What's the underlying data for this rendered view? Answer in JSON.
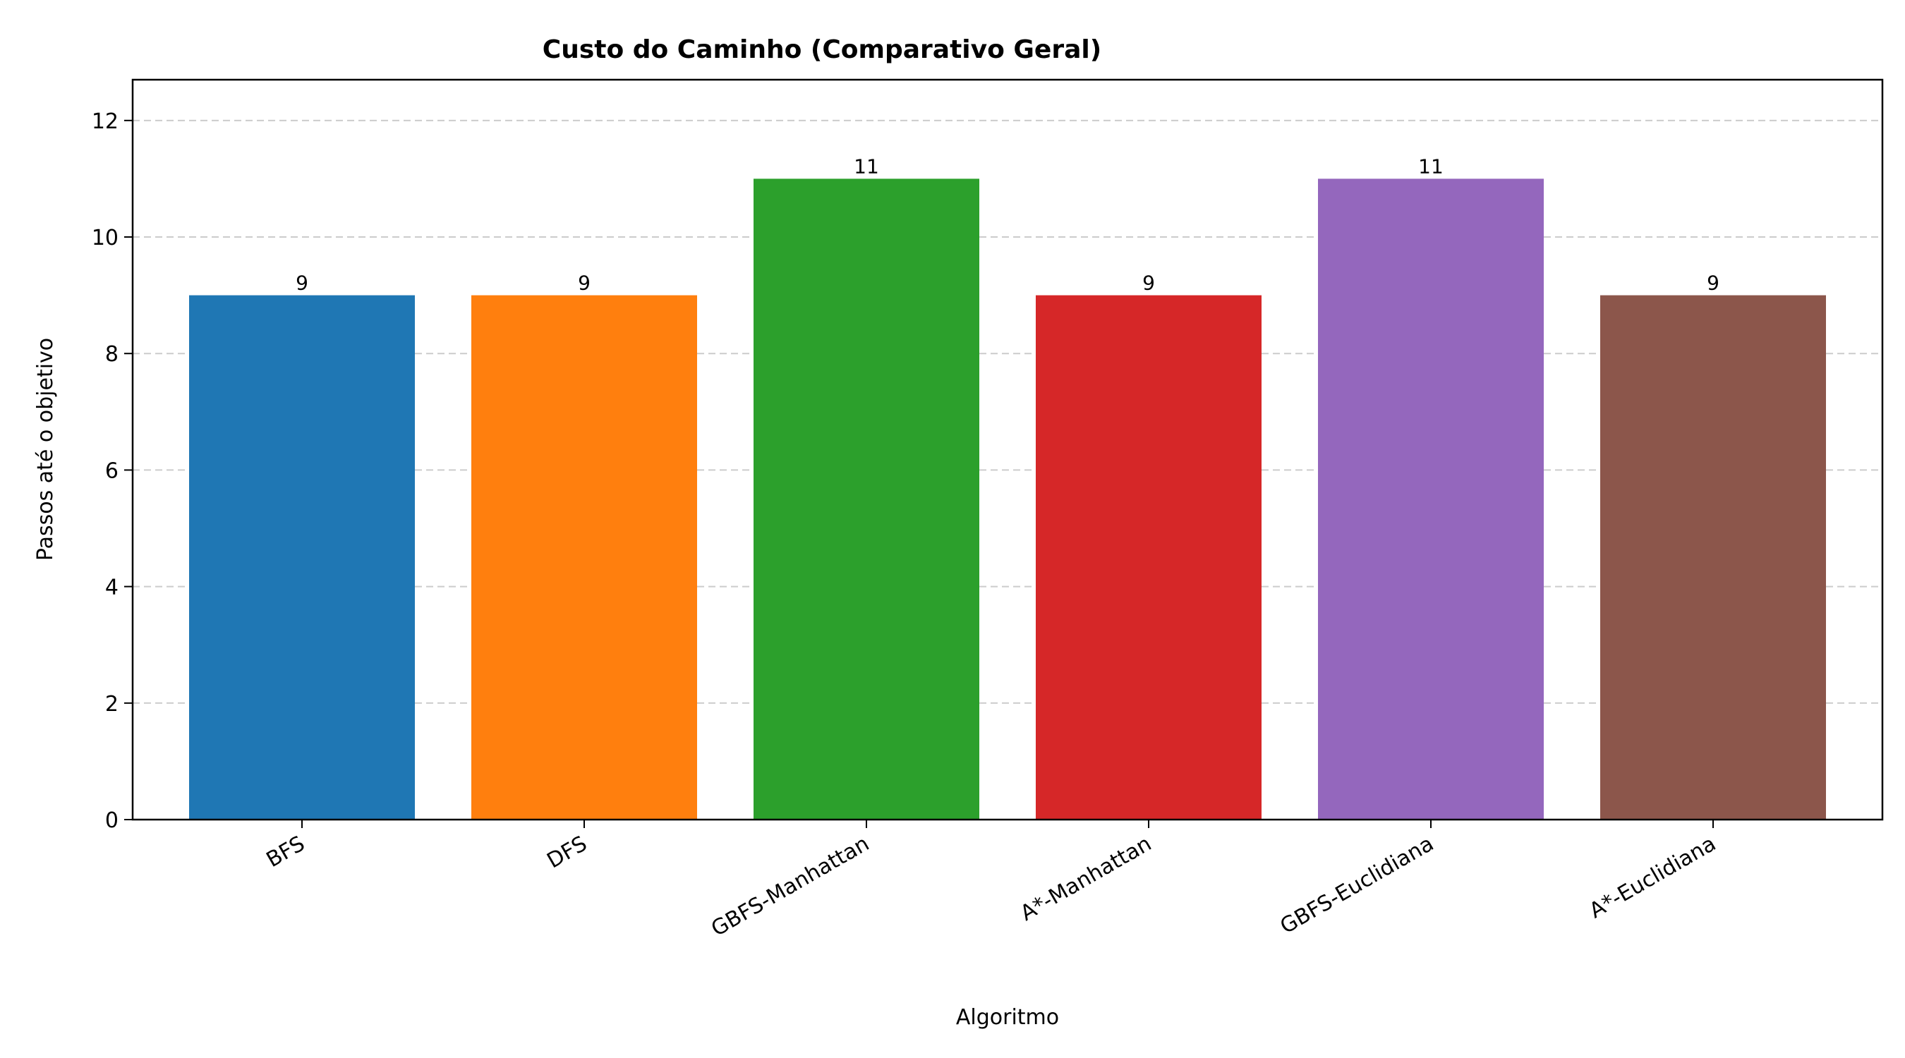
{
  "chart_data": {
    "type": "bar",
    "title": "Custo do Caminho (Comparativo Geral)",
    "xlabel": "Algoritmo",
    "ylabel": "Passos até o objetivo",
    "categories": [
      "BFS",
      "DFS",
      "GBFS-Manhattan",
      "A*-Manhattan",
      "GBFS-Euclidiana",
      "A*-Euclidiana"
    ],
    "values": [
      9,
      9,
      11,
      9,
      11,
      9
    ],
    "data_labels": [
      "9",
      "9",
      "11",
      "9",
      "11",
      "9"
    ],
    "colors": [
      "#1f77b4",
      "#ff7f0e",
      "#2ca02c",
      "#d62728",
      "#9467bd",
      "#8c564b"
    ],
    "ylim": [
      0,
      12.7
    ],
    "yticks": [
      0,
      2,
      4,
      6,
      8,
      10,
      12
    ],
    "grid": "y-dashed",
    "legend": "none"
  }
}
